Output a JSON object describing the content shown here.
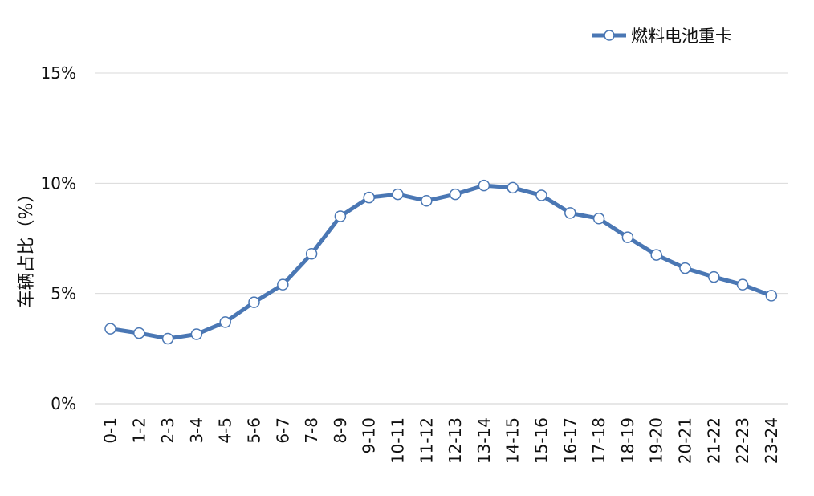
{
  "chart_data": {
    "type": "line",
    "title": "",
    "xlabel": "",
    "ylabel": "车辆占比（%）",
    "ylim": [
      0,
      15
    ],
    "yticks": [
      "0%",
      "5%",
      "10%",
      "15%"
    ],
    "grid": true,
    "legend_position": "top-right",
    "categories": [
      "0-1",
      "1-2",
      "2-3",
      "3-4",
      "4-5",
      "5-6",
      "6-7",
      "7-8",
      "8-9",
      "9-10",
      "10-11",
      "11-12",
      "12-13",
      "13-14",
      "14-15",
      "15-16",
      "16-17",
      "17-18",
      "18-19",
      "19-20",
      "20-21",
      "21-22",
      "22-23",
      "23-24"
    ],
    "series": [
      {
        "name": "燃料电池重卡",
        "color": "#4a77b4",
        "values": [
          3.4,
          3.2,
          2.95,
          3.15,
          3.7,
          4.6,
          5.4,
          6.8,
          8.5,
          9.35,
          9.5,
          9.2,
          9.5,
          9.9,
          9.8,
          9.45,
          8.65,
          8.4,
          7.55,
          6.75,
          6.15,
          5.75,
          5.4,
          4.9
        ]
      }
    ]
  }
}
